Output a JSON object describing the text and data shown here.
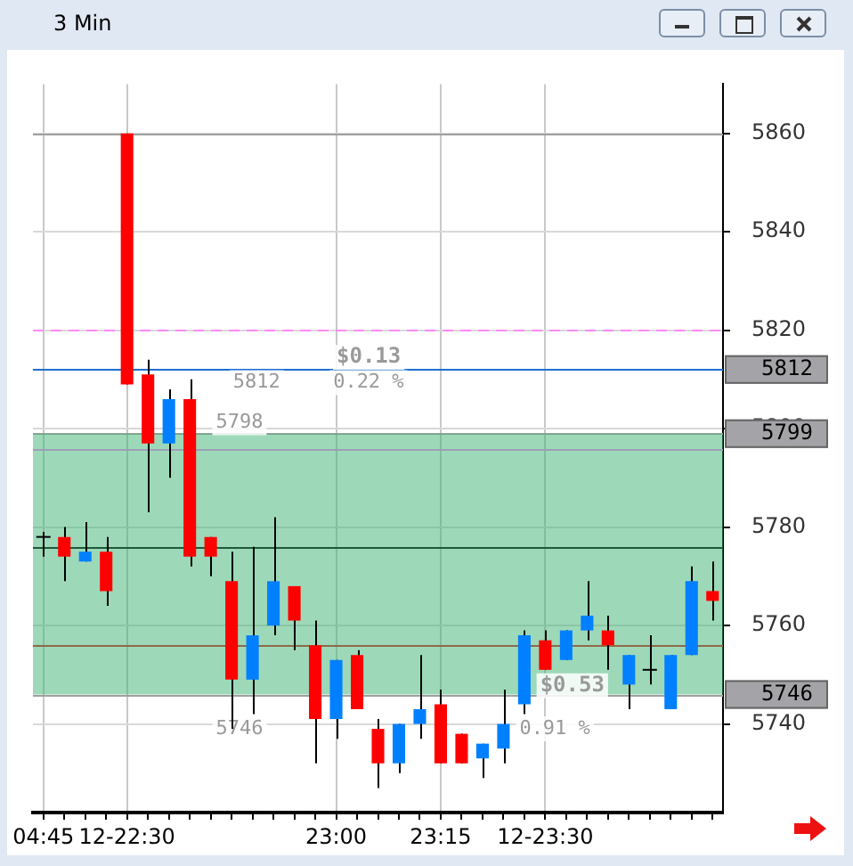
{
  "chart_data": {
    "type": "candlestick",
    "title": "3 Min",
    "categories": [
      "04:45",
      null,
      null,
      null,
      "12-22:30",
      null,
      null,
      null,
      null,
      null,
      null,
      null,
      null,
      null,
      "23:00",
      null,
      null,
      null,
      null,
      "23:15",
      null,
      null,
      null,
      null,
      "12-23:30",
      null,
      null,
      null,
      null,
      null,
      null,
      null,
      null
    ],
    "ohlc": [
      [
        5778,
        5779,
        5774,
        5778
      ],
      [
        5778,
        5780,
        5769,
        5774
      ],
      [
        5773,
        5781,
        5773,
        5775
      ],
      [
        5775,
        5778,
        5764,
        5767
      ],
      [
        5860,
        5860,
        5809,
        5809
      ],
      [
        5811,
        5814,
        5783,
        5797
      ],
      [
        5797,
        5808,
        5790,
        5806
      ],
      [
        5806,
        5810,
        5772,
        5774
      ],
      [
        5778,
        5778,
        5770,
        5774
      ],
      [
        5769,
        5775,
        5739,
        5749
      ],
      [
        5749,
        5776,
        5742,
        5758
      ],
      [
        5760,
        5782,
        5758,
        5769
      ],
      [
        5768,
        5768,
        5755,
        5761
      ],
      [
        5756,
        5761,
        5732,
        5741
      ],
      [
        5741,
        5753,
        5737,
        5753
      ],
      [
        5754,
        5755,
        5743,
        5743
      ],
      [
        5739,
        5741,
        5727,
        5732
      ],
      [
        5732,
        5740,
        5730,
        5740
      ],
      [
        5740,
        5754,
        5737,
        5743
      ],
      [
        5744,
        5747,
        5732,
        5732
      ],
      [
        5738,
        5738,
        5732,
        5732
      ],
      [
        5733,
        5736,
        5729,
        5736
      ],
      [
        5735,
        5747,
        5732,
        5740
      ],
      [
        5744,
        5759,
        5742,
        5758
      ],
      [
        5757,
        5759,
        5751,
        5751
      ],
      [
        5753,
        5759,
        5753,
        5759
      ],
      [
        5759,
        5769,
        5757,
        5762
      ],
      [
        5759,
        5762,
        5751,
        5756
      ],
      [
        5748,
        5754,
        5743,
        5754
      ],
      [
        5751,
        5758,
        5748,
        5751
      ],
      [
        5743,
        5754,
        5743,
        5754
      ],
      [
        5754,
        5772,
        5754,
        5769
      ],
      [
        5767,
        5773,
        5761,
        5765
      ]
    ],
    "colors": [
      "#000000",
      "#ff0000",
      "#0080ff",
      "#ff0000",
      "#ff0000",
      "#ff0000",
      "#0080ff",
      "#ff0000",
      "#ff0000",
      "#ff0000",
      "#0080ff",
      "#0080ff",
      "#ff0000",
      "#ff0000",
      "#0080ff",
      "#ff0000",
      "#ff0000",
      "#0080ff",
      "#0080ff",
      "#ff0000",
      "#ff0000",
      "#0080ff",
      "#0080ff",
      "#0080ff",
      "#ff0000",
      "#0080ff",
      "#0080ff",
      "#ff0000",
      "#0080ff",
      "#000000",
      "#0080ff",
      "#0080ff",
      "#ff0000"
    ],
    "ylim": [
      5722,
      5870
    ],
    "yticks": [
      5740,
      5760,
      5780,
      5800,
      5820,
      5840,
      5860
    ],
    "grid": true,
    "legend": false,
    "ref_lines": [
      {
        "axis": "y",
        "value": 5860,
        "color": "#a0a0a0"
      },
      {
        "axis": "y",
        "value": 5820,
        "color": "#ff88ff",
        "line_style": "dashed"
      },
      {
        "axis": "y",
        "value": 5812,
        "label": "5812",
        "color": "#1e6fd0"
      },
      {
        "axis": "y",
        "value": 5799,
        "label": "5799",
        "color": "#a0a0a0"
      },
      {
        "axis": "y",
        "value": 5796,
        "color": "#ff88ff"
      },
      {
        "axis": "y",
        "value": 5776,
        "color": "#000000"
      },
      {
        "axis": "y",
        "value": 5756,
        "color": "#e02020"
      },
      {
        "axis": "y",
        "value": 5746,
        "label": "5746",
        "color": "#a0a0a0"
      }
    ],
    "bands": [
      {
        "axis": "y",
        "from": 5746,
        "to": 5799,
        "color": "#3cb371"
      }
    ],
    "annotations": [
      "$0.13",
      "0.22 %",
      "5812",
      "5798",
      "5746",
      "$0.53",
      "0.91 %"
    ]
  }
}
